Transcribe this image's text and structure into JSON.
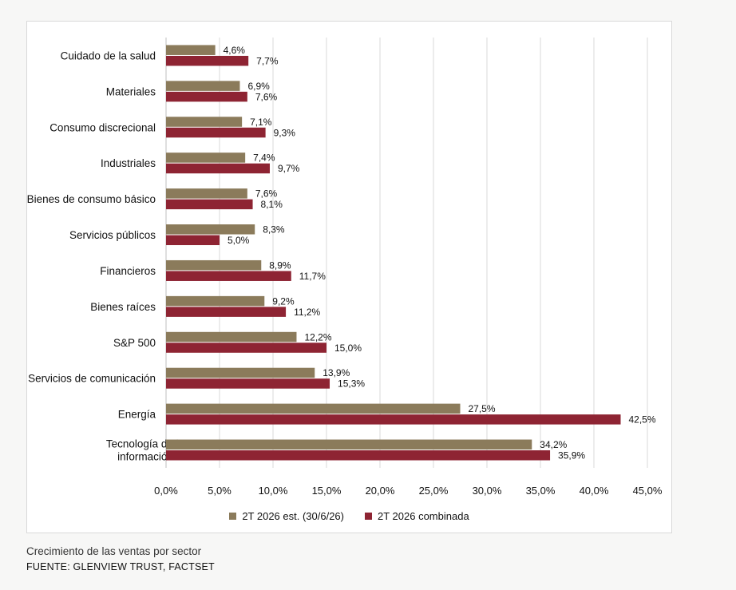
{
  "chart_data": {
    "type": "bar",
    "orientation": "horizontal",
    "categories": [
      "Cuidado de la salud",
      "Materiales",
      "Consumo discrecional",
      "Industriales",
      "Bienes de consumo básico",
      "Servicios públicos",
      "Financieros",
      "Bienes raíces",
      "S&P 500",
      "Servicios de comunicación",
      "Energía",
      "Tecnología de la información"
    ],
    "series": [
      {
        "name": "2T 2026 est. (30/6/26)",
        "color": "#8b7b5b",
        "values": [
          4.6,
          6.9,
          7.1,
          7.4,
          7.6,
          8.3,
          8.9,
          9.2,
          12.2,
          13.9,
          27.5,
          34.2
        ],
        "labels": [
          "4,6%",
          "6,9%",
          "7,1%",
          "7,4%",
          "7,6%",
          "8,3%",
          "8,9%",
          "9,2%",
          "12,2%",
          "13,9%",
          "27,5%",
          "34,2%"
        ]
      },
      {
        "name": "2T 2026 combinada",
        "color": "#8e2433",
        "values": [
          7.7,
          7.6,
          9.3,
          9.7,
          8.1,
          5.0,
          11.7,
          11.2,
          15.0,
          15.3,
          42.5,
          35.9
        ],
        "labels": [
          "7,7%",
          "7,6%",
          "9,3%",
          "9,7%",
          "8,1%",
          "5,0%",
          "11,7%",
          "11,2%",
          "15,0%",
          "15,3%",
          "42,5%",
          "35,9%"
        ]
      }
    ],
    "xlim": [
      0,
      45
    ],
    "ticks": [
      "0,0%",
      "5,0%",
      "10,0%",
      "15,0%",
      "20,0%",
      "25,0%",
      "30,0%",
      "35,0%",
      "40,0%",
      "45,0%"
    ],
    "grid": true,
    "legend_position": "bottom"
  },
  "caption": "Crecimiento de las ventas por sector",
  "source": "FUENTE: GLENVIEW TRUST, FACTSET"
}
